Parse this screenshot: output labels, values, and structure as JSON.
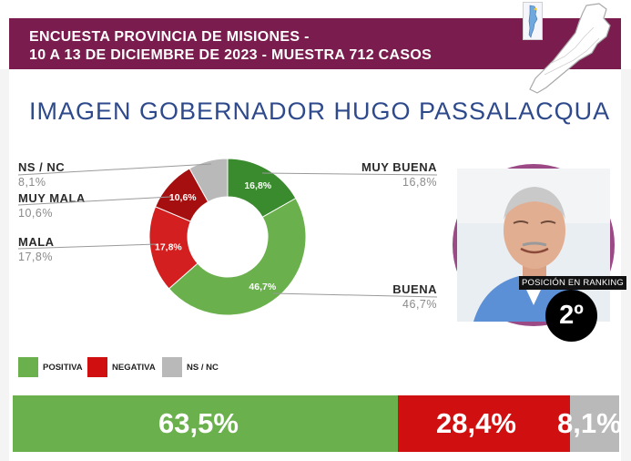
{
  "header": {
    "line1": "ENCUESTA PROVINCIA DE MISIONES -",
    "line2": "10 A 13 DE DICIEMBRE DE 2023 - MUESTRA 712 CASOS",
    "band_color": "#7a1d4e"
  },
  "title": "IMAGEN GOBERNADOR  HUGO PASSALACQUA",
  "chart_data": [
    {
      "type": "pie",
      "variant": "donut",
      "slices": [
        {
          "name": "MUY BUENA",
          "value": 16.8,
          "label": "16,8%",
          "color": "#3a8a2e"
        },
        {
          "name": "BUENA",
          "value": 46.7,
          "label": "46,7%",
          "color": "#6ab04c"
        },
        {
          "name": "MALA",
          "value": 17.8,
          "label": "17,8%",
          "color": "#d31f1f"
        },
        {
          "name": "MUY MALA",
          "value": 10.6,
          "label": "10,6%",
          "color": "#a50f0f"
        },
        {
          "name": "NS / NC",
          "value": 8.1,
          "label": "8,1%",
          "color": "#b9b9b9"
        }
      ]
    },
    {
      "type": "bar",
      "orientation": "horizontal-stacked",
      "segments": [
        {
          "name": "POSITIVA",
          "value": 63.5,
          "label": "63,5%",
          "color": "#6ab04c"
        },
        {
          "name": "NEGATIVA",
          "value": 28.4,
          "label": "28,4%",
          "color": "#d01010"
        },
        {
          "name": "NS / NC",
          "value": 8.1,
          "label": "8,1%",
          "color": "#b9b9b9"
        }
      ]
    }
  ],
  "donut_labels": {
    "ns_nc": {
      "name": "NS / NC",
      "value": "8,1%"
    },
    "muy_mala": {
      "name": "MUY MALA",
      "value": "10,6%"
    },
    "mala": {
      "name": "MALA",
      "value": "17,8%"
    },
    "muy_buena": {
      "name": "MUY BUENA",
      "value": "16,8%"
    },
    "buena": {
      "name": "BUENA",
      "value": "46,7%"
    }
  },
  "legend": [
    {
      "label": "POSITIVA",
      "color": "#6ab04c"
    },
    {
      "label": "NEGATIVA",
      "color": "#d01010"
    },
    {
      "label": "NS / NC",
      "color": "#b9b9b9"
    }
  ],
  "ranking": {
    "caption": "POSICIÓN EN RANKING",
    "position": "2º"
  }
}
